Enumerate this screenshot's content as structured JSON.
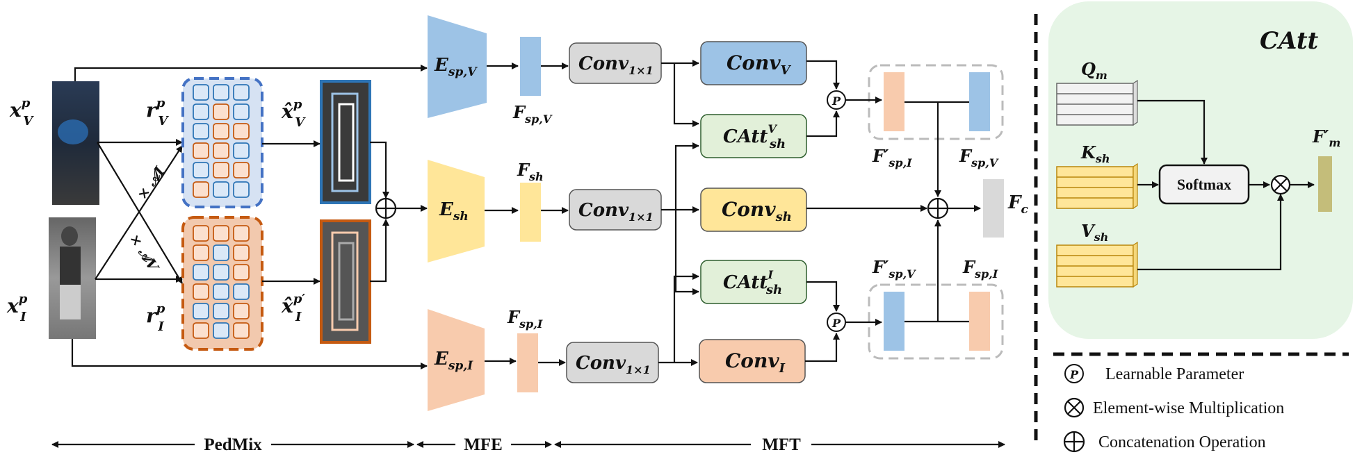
{
  "inputs": {
    "xv": "x",
    "xv_sup": "p",
    "xv_sub": "V",
    "xi": "x",
    "xi_sup": "p",
    "xi_sub": "I",
    "rv": "r",
    "rv_sup": "p",
    "rv_sub": "V",
    "ri": "r",
    "ri_sup": "p",
    "ri_sub": "I",
    "av": "× 𝒜I",
    "ai": "× 𝒜V",
    "xhat_v": "x̂",
    "xhat_v_sup": "p",
    "xhat_v_sub": "V",
    "xhat_i": "x̂",
    "xhat_i_sup": "p′",
    "xhat_i_sub": "I"
  },
  "encoders": {
    "e_spv": "E",
    "e_spv_sub": "sp,V",
    "e_sh": "E",
    "e_sh_sub": "sh",
    "e_spi": "E",
    "e_spi_sub": "sp,I"
  },
  "features": {
    "f_spv": "F",
    "f_spv_sub": "sp,V",
    "f_sh": "F",
    "f_sh_sub": "sh",
    "f_spi": "F",
    "f_spi_sub": "sp,I",
    "fp_spi": "F′",
    "fp_spi_sub": "sp,I",
    "f_spv2": "F",
    "f_spv2_sub": "sp,V",
    "fp_spv": "F′",
    "fp_spv_sub": "sp,V",
    "f_spi2": "F",
    "f_spi2_sub": "sp,I",
    "fc": "F",
    "fc_sub": "c"
  },
  "blocks": {
    "conv1": "Conv",
    "conv1_sub": "1×1",
    "conv2": "Conv",
    "conv2_sub": "1×1",
    "conv3": "Conv",
    "conv3_sub": "1×1",
    "conv_v": "Conv",
    "conv_v_sub": "V",
    "conv_sh": "Conv",
    "conv_sh_sub": "sh",
    "conv_i": "Conv",
    "conv_i_sub": "I",
    "catt_v": "CAtt",
    "catt_v_sup": "V",
    "catt_v_sub": "sh",
    "catt_i": "CAtt",
    "catt_i_sup": "I",
    "catt_i_sub": "sh",
    "p": "P"
  },
  "stages": {
    "pedmix": "PedMix",
    "mfe": "MFE",
    "mft": "MFT"
  },
  "catt_panel": {
    "title": "CAtt",
    "qm": "Q",
    "qm_sub": "m",
    "ksh": "K",
    "ksh_sub": "sh",
    "vsh": "V",
    "vsh_sub": "sh",
    "softmax": "Softmax",
    "fpm": "F′",
    "fpm_sub": "m"
  },
  "legend": {
    "learnable": "Learnable Parameter",
    "elementwise": "Element-wise Multiplication",
    "concat": "Concatenation Operation"
  },
  "colors": {
    "blue": "#9dc3e6",
    "yellow": "#ffe699",
    "orange": "#f8cbad",
    "gray": "#d9d9d9",
    "green": "#e2f0d9",
    "olive": "#c4bd7a",
    "panel": "#e6f5e6"
  }
}
